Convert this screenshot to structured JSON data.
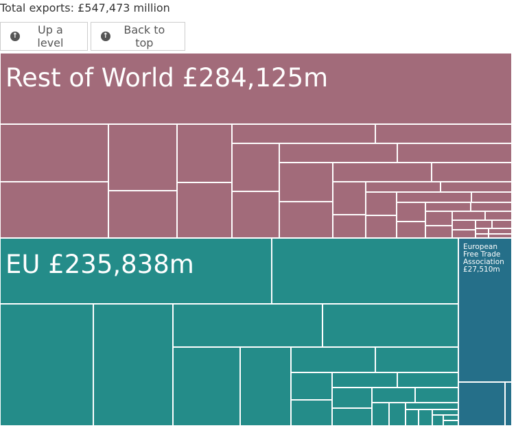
{
  "header": {
    "total_label": "Total exports: £547,473 million"
  },
  "buttons": {
    "up_label": "Up a level",
    "back_label": "Back to top",
    "icon": "arrow-up-circle"
  },
  "colors": {
    "rest_of_world": "#a26b7a",
    "eu": "#248c89",
    "efta": "#256f89",
    "border": "#ffffff"
  },
  "treemap": {
    "groups": [
      {
        "name": "Rest of World",
        "label": "Rest of World £284,125m",
        "value_m": 284125
      },
      {
        "name": "EU",
        "label": "EU £235,838m",
        "value_m": 235838
      },
      {
        "name": "European Free Trade Association",
        "label": "European Free Trade Association £27,510m",
        "value_m": 27510
      }
    ]
  }
}
